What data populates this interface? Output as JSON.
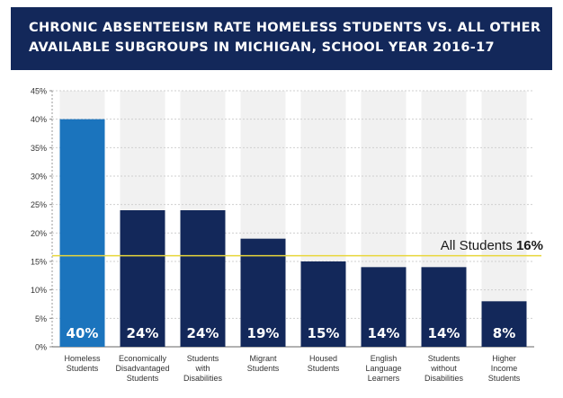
{
  "header": {
    "title_line1": "CHRONIC ABSENTEEISM RATE HOMELESS STUDENTS VS. ALL OTHER",
    "title_line2": "AVAILABLE SUBGROUPS IN MICHIGAN, SCHOOL YEAR 2016-17"
  },
  "chart_data": {
    "type": "bar",
    "title": "CHRONIC ABSENTEEISM RATE HOMELESS STUDENTS VS. ALL OTHER AVAILABLE SUBGROUPS IN MICHIGAN, SCHOOL YEAR 2016-17",
    "categories": [
      [
        "Homeless",
        "Students"
      ],
      [
        "Economically",
        "Disadvantaged",
        "Students"
      ],
      [
        "Students",
        "with",
        "Disabilities"
      ],
      [
        "Migrant",
        "Students"
      ],
      [
        "Housed",
        "Students"
      ],
      [
        "English",
        "Language",
        "Learners"
      ],
      [
        "Students",
        "without",
        "Disabilities"
      ],
      [
        "Higher",
        "Income",
        "Students"
      ]
    ],
    "values": [
      40,
      24,
      24,
      19,
      15,
      14,
      14,
      8
    ],
    "data_labels": [
      "40%",
      "24%",
      "24%",
      "19%",
      "15%",
      "14%",
      "14%",
      "8%"
    ],
    "ylim": [
      0,
      45
    ],
    "yticks": [
      "0%",
      "5%",
      "10%",
      "15%",
      "20%",
      "25%",
      "30%",
      "35%",
      "40%",
      "45%"
    ],
    "grid": true,
    "bar_colors": [
      "#1b74bd",
      "#13285a",
      "#13285a",
      "#13285a",
      "#13285a",
      "#13285a",
      "#13285a",
      "#13285a"
    ],
    "reference_line": {
      "value": 16,
      "label": "All Students ",
      "label_value": "16%",
      "color": "#e8d63a"
    }
  }
}
